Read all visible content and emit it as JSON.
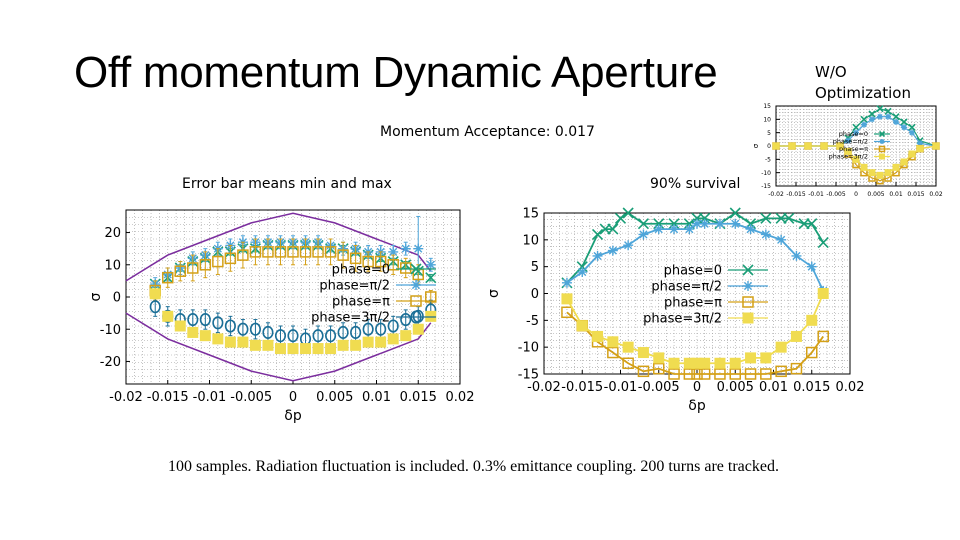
{
  "slide": {
    "title": "Off momentum Dynamic Aperture",
    "side_label_line1": "W/O",
    "side_label_line2": "Optimization",
    "momentum_acceptance": "Momentum Acceptance: 0.017",
    "error_bar_note": "Error bar  means min and max",
    "survival_note": "90% survival",
    "caption": "100 samples. Radiation fluctuation is included. 0.3% emittance coupling. 200 turns are tracked."
  },
  "colors": {
    "phase0": "#1a9e77",
    "phase_pi2": "#4ea5d9",
    "phase_pi": "#d4a017",
    "phase_3pi2": "#f0dc50",
    "phase_3pi2_left": "#1a6e96",
    "envelope": "#7b2d9e",
    "grid": "#9a9a9a"
  },
  "chart_data": [
    {
      "id": "left",
      "type": "scatter",
      "title": "",
      "xlabel": "δp",
      "ylabel": "σ",
      "xlim": [
        -0.02,
        0.02
      ],
      "ylim": [
        -27,
        27
      ],
      "xticks": [
        -0.02,
        -0.015,
        -0.01,
        -0.005,
        0,
        0.005,
        0.01,
        0.015,
        0.02
      ],
      "xtick_labels": [
        "-0.02",
        "-0.015",
        "-0.01",
        "-0.005",
        "0",
        "0.005",
        "0.01",
        "0.015",
        "0.02"
      ],
      "yticks": [
        -20,
        -10,
        0,
        10,
        20
      ],
      "ytick_labels": [
        "-20",
        "-10",
        "0",
        "10",
        "20"
      ],
      "grid": true,
      "legend_position": "center-right",
      "envelope": {
        "x": [
          -0.02,
          -0.015,
          -0.01,
          -0.005,
          0,
          0.005,
          0.01,
          0.015,
          0.0165
        ],
        "upper": [
          5,
          13,
          18,
          23,
          26,
          23,
          18,
          13,
          8
        ],
        "lower": [
          -5,
          -13,
          -18,
          -23,
          -26,
          -23,
          -18,
          -13,
          -8
        ]
      },
      "series": [
        {
          "name": "phase=0",
          "marker": "x",
          "color_key": "phase0",
          "x": [
            -0.0165,
            -0.015,
            -0.0135,
            -0.012,
            -0.0105,
            -0.009,
            -0.0075,
            -0.006,
            -0.0045,
            -0.003,
            -0.0015,
            0,
            0.0015,
            0.003,
            0.0045,
            0.006,
            0.0075,
            0.009,
            0.0105,
            0.012,
            0.0135,
            0.015,
            0.0165
          ],
          "y": [
            4,
            6,
            9,
            11,
            12,
            14,
            14,
            15,
            15,
            16,
            16,
            16,
            16,
            16,
            15,
            15,
            14,
            13,
            12,
            11,
            10,
            8,
            6
          ],
          "err": [
            1,
            1,
            1,
            1,
            1,
            1,
            1,
            1,
            1,
            1,
            1,
            1,
            1,
            1,
            1,
            1,
            1,
            1,
            1,
            1,
            1,
            1,
            1
          ]
        },
        {
          "name": "phase=π/2",
          "marker": "asterisk",
          "color_key": "phase_pi2",
          "x": [
            -0.0165,
            -0.015,
            -0.0135,
            -0.012,
            -0.0105,
            -0.009,
            -0.0075,
            -0.006,
            -0.0045,
            -0.003,
            -0.0015,
            0,
            0.0015,
            0.003,
            0.0045,
            0.006,
            0.0075,
            0.009,
            0.0105,
            0.012,
            0.0135,
            0.015,
            0.0165
          ],
          "y": [
            4,
            7,
            9,
            12,
            13,
            15,
            16,
            17,
            17,
            17,
            17,
            17,
            17,
            17,
            16,
            15,
            15,
            14,
            14,
            14,
            15,
            15,
            10
          ],
          "err": [
            2,
            2,
            2,
            2,
            2,
            2,
            2,
            2,
            2,
            2,
            2,
            2,
            2,
            2,
            2,
            2,
            2,
            2,
            2,
            2,
            2,
            10,
            2
          ]
        },
        {
          "name": "phase=π",
          "marker": "open-square",
          "color_key": "phase_pi",
          "x": [
            -0.0165,
            -0.015,
            -0.0135,
            -0.012,
            -0.0105,
            -0.009,
            -0.0075,
            -0.006,
            -0.0045,
            -0.003,
            -0.0015,
            0,
            0.0015,
            0.003,
            0.0045,
            0.006,
            0.0075,
            0.009,
            0.0105,
            0.012,
            0.0135,
            0.015,
            0.0165
          ],
          "y": [
            2,
            6,
            8,
            9,
            10,
            11,
            12,
            13,
            14,
            14,
            14,
            14,
            14,
            14,
            14,
            13,
            12,
            11,
            11,
            10,
            9,
            7,
            0
          ],
          "err": [
            3,
            3,
            3,
            4,
            4,
            4,
            4,
            4,
            4,
            4,
            4,
            4,
            4,
            4,
            4,
            4,
            4,
            3,
            3,
            3,
            3,
            3,
            2
          ]
        },
        {
          "name": "phase=3π/2",
          "marker": "open-circle",
          "color_key": "phase_3pi2_left",
          "x": [
            -0.0165,
            -0.015,
            -0.0135,
            -0.012,
            -0.0105,
            -0.009,
            -0.0075,
            -0.006,
            -0.0045,
            -0.003,
            -0.0015,
            0,
            0.0015,
            0.003,
            0.0045,
            0.006,
            0.0075,
            0.009,
            0.0105,
            0.012,
            0.0135,
            0.015,
            0.0165
          ],
          "y": [
            -3,
            -6,
            -7,
            -7,
            -7,
            -8,
            -9,
            -10,
            -10,
            -11,
            -12,
            -12,
            -13,
            -12,
            -12,
            -11,
            -11,
            -10,
            -10,
            -9,
            -7,
            -6,
            -4
          ],
          "err": [
            3,
            3,
            3,
            3,
            3,
            3,
            3,
            3,
            3,
            3,
            3,
            3,
            3,
            3,
            3,
            3,
            3,
            3,
            3,
            3,
            3,
            3,
            3
          ]
        },
        {
          "name": "",
          "marker": "filled-square",
          "color_key": "phase_3pi2",
          "x": [
            -0.0165,
            -0.015,
            -0.0135,
            -0.012,
            -0.0105,
            -0.009,
            -0.0075,
            -0.006,
            -0.0045,
            -0.003,
            -0.0015,
            0,
            0.0015,
            0.003,
            0.0045,
            0.006,
            0.0075,
            0.009,
            0.0105,
            0.012,
            0.0135,
            0.015,
            0.0165
          ],
          "y": [
            1,
            -6,
            -9,
            -11,
            -12,
            -13,
            -14,
            -14,
            -15,
            -15,
            -16,
            -16,
            -16,
            -16,
            -16,
            -15,
            -15,
            -14,
            -14,
            -13,
            -12,
            -10,
            -6
          ],
          "err": [
            0,
            0,
            0,
            0,
            0,
            0,
            0,
            0,
            0,
            0,
            0,
            0,
            0,
            0,
            0,
            0,
            0,
            0,
            0,
            0,
            0,
            0,
            0
          ]
        }
      ]
    },
    {
      "id": "right",
      "type": "line",
      "title": "",
      "xlabel": "δp",
      "ylabel": "σ",
      "xlim": [
        -0.02,
        0.02
      ],
      "ylim": [
        -15,
        15
      ],
      "xticks": [
        -0.02,
        -0.015,
        -0.01,
        -0.005,
        0,
        0.005,
        0.01,
        0.015,
        0.02
      ],
      "xtick_labels": [
        "-0.02",
        "-0.015",
        "-0.01",
        "-0.005",
        "0",
        "0.005",
        "0.01",
        "0.015",
        "0.02"
      ],
      "yticks": [
        -15,
        -10,
        -5,
        0,
        5,
        10,
        15
      ],
      "ytick_labels": [
        "-15",
        "-10",
        "-5",
        "0",
        "5",
        "10",
        "15"
      ],
      "grid": true,
      "legend_position": "center-right",
      "series": [
        {
          "name": "phase=0",
          "marker": "x",
          "color_key": "phase0",
          "x": [
            -0.017,
            -0.015,
            -0.013,
            -0.012,
            -0.011,
            -0.01,
            -0.009,
            -0.007,
            -0.005,
            -0.003,
            -0.001,
            0,
            0.001,
            0.003,
            0.005,
            0.007,
            0.009,
            0.011,
            0.012,
            0.014,
            0.015,
            0.0165
          ],
          "y": [
            2,
            5,
            11,
            12,
            12,
            14,
            15,
            13,
            13,
            13,
            13,
            14,
            14,
            13,
            15,
            13,
            14,
            14,
            14,
            13,
            13,
            9.5
          ],
          "err": []
        },
        {
          "name": "phase=π/2",
          "marker": "asterisk",
          "color_key": "phase_pi2",
          "x": [
            -0.017,
            -0.015,
            -0.013,
            -0.011,
            -0.009,
            -0.007,
            -0.005,
            -0.003,
            -0.001,
            0,
            0.001,
            0.003,
            0.005,
            0.007,
            0.009,
            0.011,
            0.013,
            0.015,
            0.0165
          ],
          "y": [
            2,
            4,
            7,
            8,
            9,
            11,
            12,
            12,
            12,
            13,
            13,
            13,
            13,
            12,
            11,
            10,
            7,
            5,
            0.5
          ],
          "err": []
        },
        {
          "name": "phase=π",
          "marker": "open-square",
          "color_key": "phase_pi",
          "x": [
            -0.017,
            -0.015,
            -0.013,
            -0.011,
            -0.009,
            -0.007,
            -0.005,
            -0.003,
            -0.001,
            0,
            0.001,
            0.003,
            0.005,
            0.007,
            0.009,
            0.011,
            0.013,
            0.015,
            0.0165
          ],
          "y": [
            -3.5,
            -6,
            -9,
            -11,
            -13,
            -14.5,
            -14,
            -15,
            -15,
            -15,
            -15,
            -15,
            -15,
            -15,
            -15,
            -14.5,
            -14,
            -11,
            -8
          ],
          "err": []
        },
        {
          "name": "phase=3π/2",
          "marker": "filled-square",
          "color_key": "phase_3pi2",
          "x": [
            -0.017,
            -0.015,
            -0.013,
            -0.011,
            -0.009,
            -0.007,
            -0.005,
            -0.003,
            -0.001,
            0,
            0.001,
            0.003,
            0.005,
            0.007,
            0.009,
            0.011,
            0.013,
            0.015,
            0.0165
          ],
          "y": [
            -1,
            -6,
            -8,
            -9,
            -10,
            -11,
            -12,
            -13,
            -13,
            -13,
            -13,
            -13,
            -13,
            -12,
            -12,
            -10,
            -8,
            -5,
            0
          ],
          "err": []
        }
      ]
    },
    {
      "id": "inset",
      "type": "line",
      "title": "",
      "xlabel": "",
      "ylabel": "σ",
      "xlim": [
        -0.02,
        0.02
      ],
      "ylim": [
        -15,
        15
      ],
      "xticks": [
        -0.02,
        -0.015,
        -0.01,
        -0.005,
        0,
        0.005,
        0.01,
        0.015,
        0.02
      ],
      "xtick_labels": [
        "-0.02",
        "-0.015",
        "-0.01",
        "-0.005",
        "0",
        "0.005",
        "0.01",
        "0.015",
        "0.02"
      ],
      "yticks": [
        -15,
        -10,
        -5,
        0,
        5,
        10,
        15
      ],
      "ytick_labels": [
        "-15",
        "-10",
        "-5",
        "0",
        "5",
        "10",
        "15"
      ],
      "grid": true,
      "legend_position": "center",
      "series": [
        {
          "name": "phase=0",
          "marker": "x",
          "color_key": "phase0",
          "x": [
            -0.02,
            -0.016,
            -0.012,
            -0.008,
            -0.004,
            -0.002,
            0,
            0.002,
            0.004,
            0.006,
            0.008,
            0.01,
            0.012,
            0.014,
            0.016,
            0.02
          ],
          "y": [
            0,
            0,
            0,
            0,
            0,
            3,
            7,
            10,
            12,
            14,
            13,
            11,
            9,
            7,
            2,
            0
          ],
          "err": []
        },
        {
          "name": "phase=π/2",
          "marker": "asterisk",
          "color_key": "phase_pi2",
          "x": [
            -0.02,
            -0.016,
            -0.012,
            -0.008,
            -0.004,
            -0.002,
            0,
            0.002,
            0.004,
            0.006,
            0.008,
            0.01,
            0.012,
            0.014,
            0.016,
            0.02
          ],
          "y": [
            0,
            0,
            0,
            0,
            0,
            2,
            5,
            8,
            10,
            11,
            11,
            9,
            7,
            5,
            1,
            0
          ],
          "err": []
        },
        {
          "name": "phase=π",
          "marker": "open-square",
          "color_key": "phase_pi",
          "x": [
            -0.02,
            -0.016,
            -0.012,
            -0.008,
            -0.004,
            -0.002,
            0,
            0.002,
            0.004,
            0.006,
            0.008,
            0.01,
            0.012,
            0.014,
            0.016,
            0.02
          ],
          "y": [
            0,
            0,
            0,
            0,
            0,
            -3,
            -7,
            -10,
            -12,
            -13,
            -12,
            -10,
            -7,
            -4,
            -1,
            0
          ],
          "err": []
        },
        {
          "name": "phase=3π/2",
          "marker": "filled-square",
          "color_key": "phase_3pi2",
          "x": [
            -0.02,
            -0.016,
            -0.012,
            -0.008,
            -0.004,
            -0.002,
            0,
            0.002,
            0.004,
            0.006,
            0.008,
            0.01,
            0.012,
            0.014,
            0.016,
            0.02
          ],
          "y": [
            0,
            0,
            0,
            0,
            0,
            -2,
            -5,
            -8,
            -10,
            -11,
            -10,
            -8,
            -6,
            -3,
            -1,
            0
          ],
          "err": []
        }
      ]
    }
  ]
}
